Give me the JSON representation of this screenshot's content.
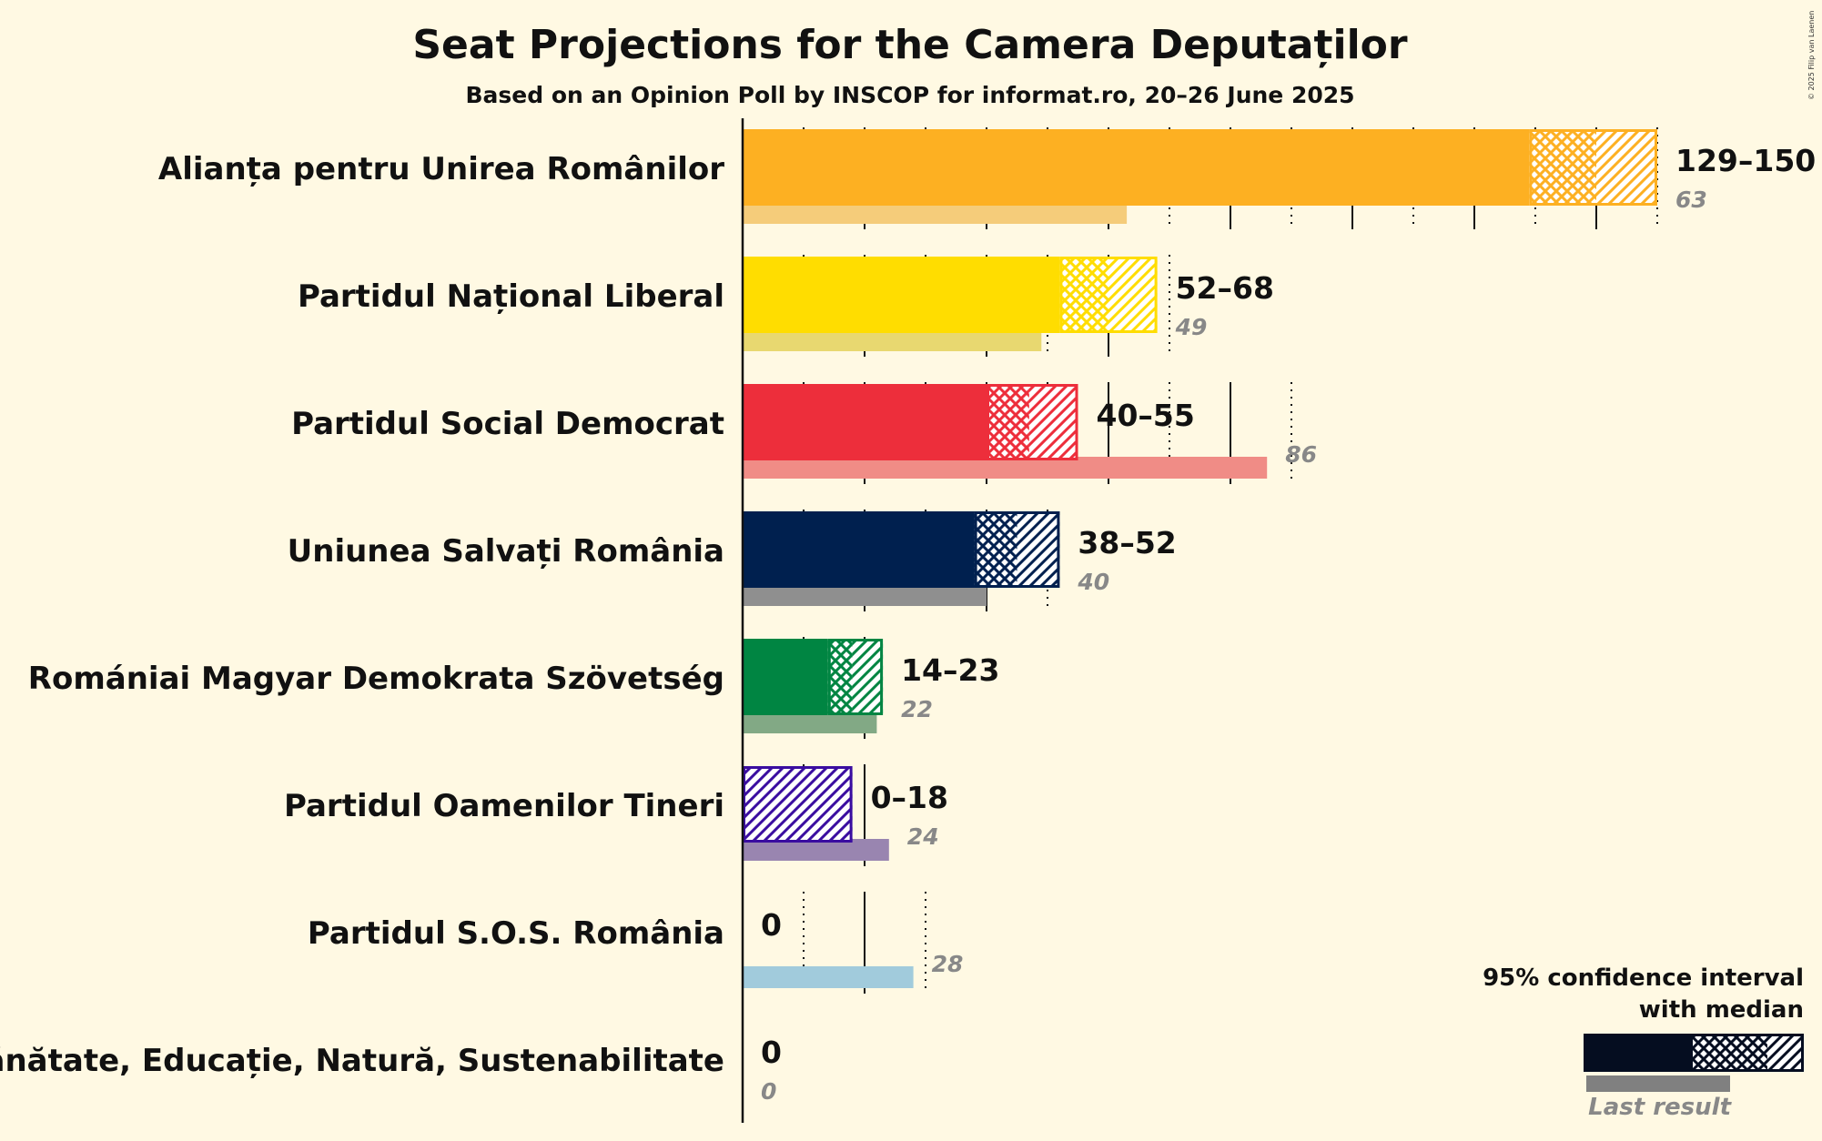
{
  "chart_data": {
    "type": "bar",
    "title": "Seat Projections for the Camera Deputaților",
    "subtitle": "Based on an Opinion Poll by INSCOP for informat.ro, 20–26 June 2025",
    "xlim": [
      0,
      150
    ],
    "major_ticks": [
      0,
      20,
      40,
      60,
      80,
      100,
      120,
      140
    ],
    "minor_ticks": [
      10,
      30,
      50,
      70,
      90,
      110,
      130,
      150
    ],
    "series": [
      {
        "name": "Alianța pentru Unirea Românilor",
        "low": 129,
        "median": 140,
        "high": 150,
        "range_label": "129–150",
        "last": 63,
        "last_label": "63",
        "color": "#fdb022",
        "last_color": "#f5cc7a"
      },
      {
        "name": "Partidul Național Liberal",
        "low": 52,
        "median": 60,
        "high": 68,
        "range_label": "52–68",
        "last": 49,
        "last_label": "49",
        "color": "#ffdd00",
        "last_color": "#e8d870"
      },
      {
        "name": "Partidul Social Democrat",
        "low": 40,
        "median": 47,
        "high": 55,
        "range_label": "40–55",
        "last": 86,
        "last_label": "86",
        "color": "#ed2e3b",
        "last_color": "#f08c86"
      },
      {
        "name": "Uniunea Salvați România",
        "low": 38,
        "median": 45,
        "high": 52,
        "range_label": "38–52",
        "last": 40,
        "last_label": "40",
        "color": "#00204f",
        "last_color": "#8f8f8f"
      },
      {
        "name": "Romániai Magyar Demokrata Szövetség",
        "low": 14,
        "median": 18,
        "high": 23,
        "range_label": "14–23",
        "last": 22,
        "last_label": "22",
        "color": "#008542",
        "last_color": "#82a985"
      },
      {
        "name": "Partidul Oamenilor Tineri",
        "low": 0,
        "median": 0,
        "high": 18,
        "range_label": "0–18",
        "last": 24,
        "last_label": "24",
        "color": "#3a0da0",
        "last_color": "#9985b0"
      },
      {
        "name": "Partidul S.O.S. România",
        "low": 0,
        "median": 0,
        "high": 0,
        "range_label": "0",
        "last": 28,
        "last_label": "28",
        "color": "#5fa8c8",
        "last_color": "#a1cbdc"
      },
      {
        "name": "Sănătate, Educație, Natură, Sustenabilitate",
        "low": 0,
        "median": 0,
        "high": 0,
        "range_label": "0",
        "last": 0,
        "last_label": "0",
        "color": "#444444",
        "last_color": "#aaaaaa"
      }
    ]
  },
  "legend": {
    "line1": "95% confidence interval",
    "line2": "with median",
    "last_result": "Last result",
    "colors": {
      "dark": "#050d20",
      "grey": "#808080"
    }
  },
  "copyright": "© 2025 Filip van Laenen"
}
